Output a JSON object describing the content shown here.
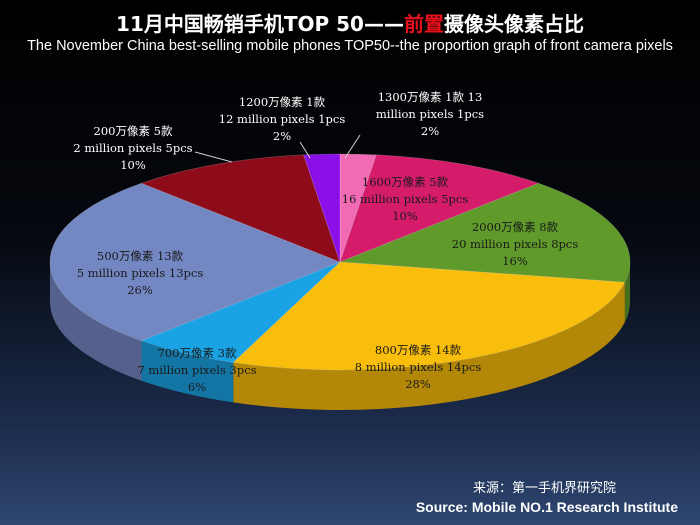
{
  "title": {
    "prefix": "11月中国畅销手机TOP 50——",
    "highlight": "前置",
    "suffix": "摄像头像素占比"
  },
  "subtitle": "The November China best-selling mobile phones TOP50--the proportion graph of front camera pixels",
  "source": {
    "cn": "来源：第一手机界研究院",
    "en": "Source: Mobile NO.1 Research Institute"
  },
  "chart_data": {
    "type": "pie",
    "title": "11月中国畅销手机TOP 50——前置摄像头像素占比",
    "slices": [
      {
        "cn": "1300万像素 1款 13",
        "en": "million pixels 1pcs",
        "pct": "2%",
        "value": 1,
        "color": "#f06ab4"
      },
      {
        "cn": "1600万像素 5款",
        "en": "16 million pixels 5pcs",
        "pct": "10%",
        "value": 5,
        "color": "#d41c6b"
      },
      {
        "cn": "2000万像素 8款",
        "en": "20 million pixels  8pcs",
        "pct": "16%",
        "value": 8,
        "color": "#5f9a2a"
      },
      {
        "cn": "800万像素 14款",
        "en": "8 million pixels 14pcs",
        "pct": "28%",
        "value": 14,
        "color": "#f9bd0b"
      },
      {
        "cn": "700万像素 3款",
        "en": "7 million pixels 3pcs",
        "pct": "6%",
        "value": 3,
        "color": "#1aa3e4"
      },
      {
        "cn": "500万像素 13款",
        "en": "5 million pixels 13pcs",
        "pct": "26%",
        "value": 13,
        "color": "#7387c3"
      },
      {
        "cn": "200万像素 5款",
        "en": "2 million pixels 5pcs",
        "pct": "10%",
        "value": 5,
        "color": "#8e0c1a"
      },
      {
        "cn": "1200万像素 1款",
        "en": "12 million pixels 1pcs",
        "pct": "2%",
        "value": 1,
        "color": "#8b10e8"
      }
    ]
  }
}
